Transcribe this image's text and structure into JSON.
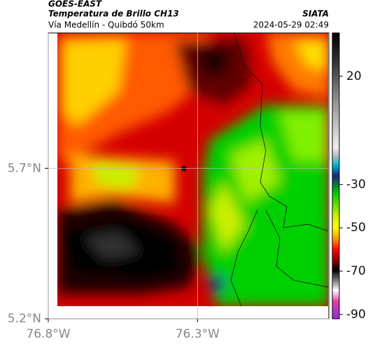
{
  "header": {
    "source": "GOES-EAST",
    "title": "Temperatura de Brillo CH13",
    "subtitle": "Vía Medellín - Quibdó 50km",
    "brand": "SIATA",
    "datetime": "2024-05-29 02:49"
  },
  "map": {
    "xlim": [
      -76.8,
      -75.86
    ],
    "ylim": [
      5.2,
      6.15
    ],
    "xticks": [
      {
        "value": -76.8,
        "label": "76.8°W"
      },
      {
        "value": -76.3,
        "label": "76.3°W"
      }
    ],
    "yticks": [
      {
        "value": 5.2,
        "label": "5.2°N"
      },
      {
        "value": 5.7,
        "label": "5.7°N"
      }
    ]
  },
  "colorbar": {
    "lim": [
      -92,
      40
    ],
    "ticks": [
      20,
      -30,
      -50,
      -70,
      -90
    ]
  }
}
